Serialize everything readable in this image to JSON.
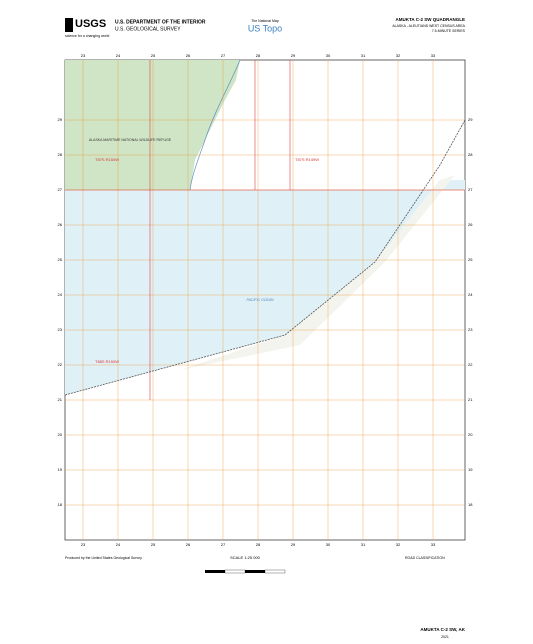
{
  "header": {
    "agency_logo": "USGS",
    "agency_tagline": "science for a changing world",
    "department": "U.S. DEPARTMENT OF THE INTERIOR",
    "survey": "U.S. GEOLOGICAL SURVEY",
    "national_map": "The National Map",
    "us_topo": "US Topo",
    "quad_title": "AMUKTA C-2 SW QUADRANGLE",
    "area": "ALASKA - ALEUTIANS WEST CENSUS AREA",
    "series": "7.5-MINUTE SERIES"
  },
  "map": {
    "refuge": "ALASKA MARITIME NATIONAL WILDLIFE REFUGE",
    "township_labels": [
      "T87S R150W",
      "T87S R149W",
      "T88S R150W"
    ],
    "water_label": "PACIFIC OCEAN",
    "top_grid": [
      "23",
      "24",
      "25",
      "26",
      "27",
      "28",
      "29",
      "30",
      "31",
      "32",
      "33"
    ],
    "side_grid": [
      "29",
      "28",
      "27",
      "26",
      "25",
      "24",
      "23",
      "22",
      "21",
      "20",
      "19",
      "18"
    ]
  },
  "footer": {
    "producer": "Produced by the United States Geological Survey",
    "scale": "SCALE 1:25 000",
    "road_classification": "ROAD CLASSIFICATION",
    "quad_name": "AMUKTA C-2 SW, AK",
    "year": "2021"
  }
}
